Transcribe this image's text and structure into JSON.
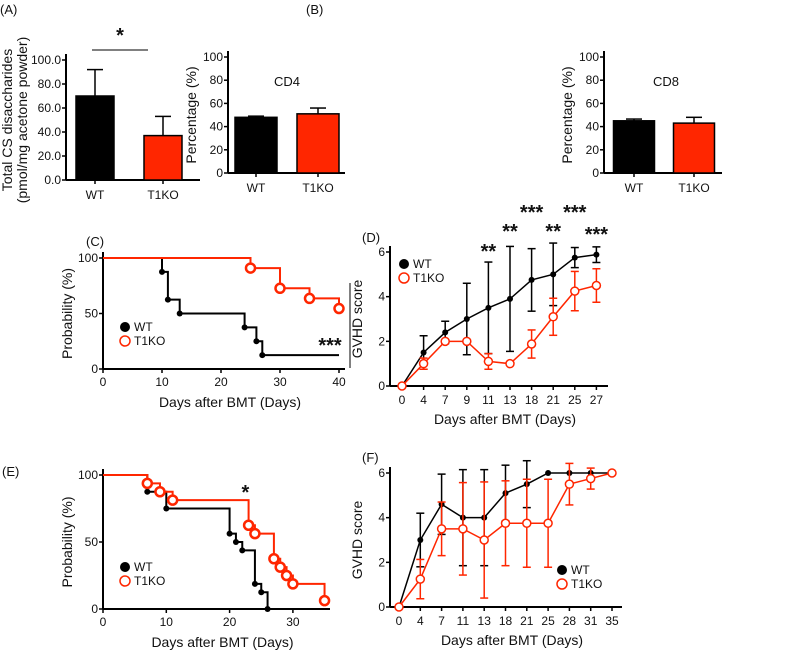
{
  "colors": {
    "wt": "#000000",
    "t1ko": "#ff2600"
  },
  "chart_data": [
    {
      "panel": "(A)",
      "type": "bar",
      "title": "",
      "ylabel": [
        "Total CS disaccharides",
        "(pmol/mg acetone powder)"
      ],
      "categories": [
        "WT",
        "T1KO"
      ],
      "values": [
        70,
        37
      ],
      "errors": [
        22,
        16
      ],
      "ylim": [
        0,
        100
      ],
      "yticks": [
        "0.0",
        "20.0",
        "40.0",
        "60.0",
        "80.0",
        "100.0"
      ],
      "significance": "*"
    },
    {
      "panel": "(B)",
      "type": "bar",
      "title": "CD4",
      "ylabel": [
        "Percentage (%)"
      ],
      "categories": [
        "WT",
        "T1KO"
      ],
      "values": [
        48,
        51
      ],
      "errors": [
        1,
        5
      ],
      "ylim": [
        0,
        100
      ],
      "yticks": [
        "0",
        "20",
        "40",
        "60",
        "80",
        "100"
      ]
    },
    {
      "panel": "",
      "type": "bar",
      "title": "CD8",
      "ylabel": [
        "Percentage (%)"
      ],
      "categories": [
        "WT",
        "T1KO"
      ],
      "values": [
        45,
        43
      ],
      "errors": [
        1.5,
        5
      ],
      "ylim": [
        0,
        100
      ],
      "yticks": [
        "0",
        "20",
        "40",
        "60",
        "80",
        "100"
      ]
    },
    {
      "panel": "(C)",
      "type": "line",
      "subtype": "survival",
      "xlabel": "Days after BMT (Days)",
      "ylabel": "Probability (%)",
      "xlim": [
        0,
        40
      ],
      "ylim": [
        0,
        100
      ],
      "xticks": [
        "0",
        "10",
        "20",
        "30",
        "40"
      ],
      "yticks": [
        "0",
        "50",
        "100"
      ],
      "legend": [
        "WT",
        "T1KO"
      ],
      "legend_position": "bottom-left",
      "significance": "***",
      "series": [
        {
          "name": "WT",
          "end": 40,
          "events": [
            [
              10,
              87.5
            ],
            [
              11,
              62.5
            ],
            [
              13,
              50
            ],
            [
              24,
              37.5
            ],
            [
              26,
              25
            ],
            [
              27,
              12.5
            ]
          ]
        },
        {
          "name": "T1KO",
          "end": 40,
          "events": [
            [
              25,
              90.9
            ],
            [
              30,
              72.7
            ],
            [
              35,
              63.6
            ],
            [
              40,
              54.5
            ]
          ]
        }
      ]
    },
    {
      "panel": "(D)",
      "type": "line",
      "xlabel": "Days after BMT (Days)",
      "ylabel": "GVHD score",
      "categories": [
        "0",
        "4",
        "7",
        "9",
        "11",
        "13",
        "18",
        "21",
        "25",
        "27"
      ],
      "ylim": [
        0,
        6
      ],
      "yticks": [
        "0",
        "2",
        "4",
        "6"
      ],
      "legend": [
        "WT",
        "T1KO"
      ],
      "legend_position": "top-left",
      "significance": [
        "",
        "",
        "",
        "",
        "**",
        "**",
        "***",
        "**",
        "***",
        "***"
      ],
      "series": [
        {
          "name": "WT",
          "values": [
            0,
            1.5,
            2.4,
            3.0,
            3.5,
            3.9,
            4.75,
            5.0,
            5.75,
            5.88
          ],
          "errors": [
            0,
            0.75,
            0.5,
            1.6,
            2.05,
            2.35,
            1.4,
            1.4,
            0.45,
            0.35
          ]
        },
        {
          "name": "T1KO",
          "values": [
            0,
            1.0,
            2.0,
            2.0,
            1.1,
            1.0,
            1.88,
            3.1,
            4.25,
            4.5
          ],
          "errors": [
            0,
            0.25,
            0,
            0,
            0.35,
            0,
            0.63,
            0.83,
            0.88,
            0.75
          ]
        }
      ]
    },
    {
      "panel": "(E)",
      "type": "line",
      "subtype": "survival",
      "xlabel": "Days after BMT (Days)",
      "ylabel": "Probability (%)",
      "xlim": [
        0,
        35
      ],
      "ylim": [
        0,
        100
      ],
      "xticks": [
        "0",
        "10",
        "20",
        "30"
      ],
      "yticks": [
        "0",
        "50",
        "100"
      ],
      "legend": [
        "WT",
        "T1KO"
      ],
      "legend_position": "bottom-left",
      "significance": "*",
      "series": [
        {
          "name": "WT",
          "end": 26,
          "events": [
            [
              7,
              87.5
            ],
            [
              10,
              75
            ],
            [
              20,
              56.25
            ],
            [
              21,
              50
            ],
            [
              22,
              43.75
            ],
            [
              24,
              18.75
            ],
            [
              25,
              12.5
            ],
            [
              26,
              0
            ]
          ]
        },
        {
          "name": "T1KO",
          "end": 35,
          "events": [
            [
              7,
              93.75
            ],
            [
              9,
              87.5
            ],
            [
              11,
              81.25
            ],
            [
              23,
              62.5
            ],
            [
              24,
              56.25
            ],
            [
              27,
              37.5
            ],
            [
              28,
              31.25
            ],
            [
              29,
              25
            ],
            [
              30,
              18.75
            ],
            [
              35,
              6.25
            ]
          ]
        }
      ]
    },
    {
      "panel": "(F)",
      "type": "line",
      "xlabel": "Days after BMT (Days)",
      "ylabel": "GVHD score",
      "categories": [
        "0",
        "4",
        "7",
        "11",
        "13",
        "18",
        "21",
        "25",
        "28",
        "31",
        "35"
      ],
      "ylim": [
        0,
        6
      ],
      "yticks": [
        "0",
        "2",
        "4",
        "6"
      ],
      "legend": [
        "WT",
        "T1KO"
      ],
      "legend_position": "bottom-right",
      "series": [
        {
          "name": "WT",
          "values": [
            0,
            3.0,
            4.6,
            4.0,
            4.0,
            5.1,
            5.5,
            6,
            6,
            6,
            6
          ],
          "errors": [
            0,
            1.2,
            1.35,
            2.15,
            2.15,
            1.25,
            1.05,
            0,
            0,
            0,
            0
          ]
        },
        {
          "name": "T1KO",
          "values": [
            0,
            1.25,
            3.5,
            3.5,
            3.0,
            3.75,
            3.75,
            3.75,
            5.5,
            5.75,
            6
          ],
          "errors": [
            0,
            0.88,
            1.2,
            2.07,
            2.6,
            1.9,
            1.97,
            1.97,
            0.93,
            0.47,
            0
          ]
        }
      ]
    }
  ]
}
